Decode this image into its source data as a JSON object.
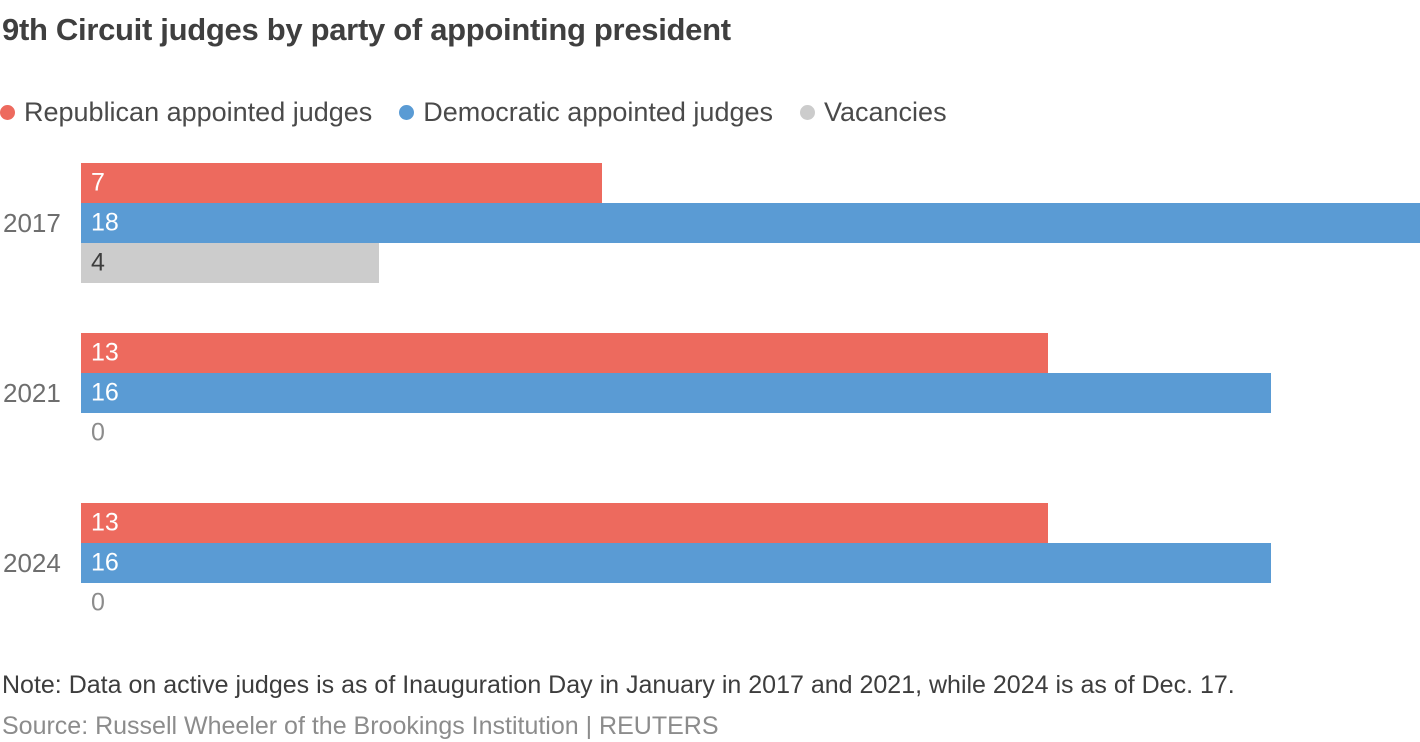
{
  "title": "9th Circuit judges by party of appointing president",
  "note": "Note: Data on active judges is as of Inauguration Day in January in 2017 and 2021, while 2024 is as of Dec. 17.",
  "source": "Source: Russell Wheeler of the Brookings Institution | REUTERS",
  "colors": {
    "republican": "#ed6a5e",
    "democratic": "#5a9bd4",
    "vacancy": "#cccccc",
    "title_text": "#3f3f3f",
    "legend_text": "#4a4a4a",
    "year_label_text": "#6e6e6e",
    "note_text": "#3d3d3d",
    "source_text": "#8c8c8c",
    "zero_label_text": "#8c8c8c"
  },
  "chart_data": {
    "type": "bar",
    "orientation": "horizontal",
    "title": "9th Circuit judges by party of appointing president",
    "categories": [
      "2017",
      "2021",
      "2024"
    ],
    "series": [
      {
        "name": "Republican appointed judges",
        "color": "#ed6a5e",
        "label_color": "#ffffff",
        "values": [
          7,
          13,
          13
        ]
      },
      {
        "name": "Democratic appointed judges",
        "color": "#5a9bd4",
        "label_color": "#ffffff",
        "values": [
          18,
          16,
          16
        ]
      },
      {
        "name": "Vacancies",
        "color": "#cccccc",
        "label_color": "#3d3d3d",
        "values": [
          4,
          0,
          0
        ]
      }
    ],
    "xmax": 18,
    "xlabel": "",
    "ylabel": "",
    "grid": false,
    "legend_position": "top",
    "value_labels": "inside-left",
    "zero_label_color": "#8c8c8c"
  }
}
